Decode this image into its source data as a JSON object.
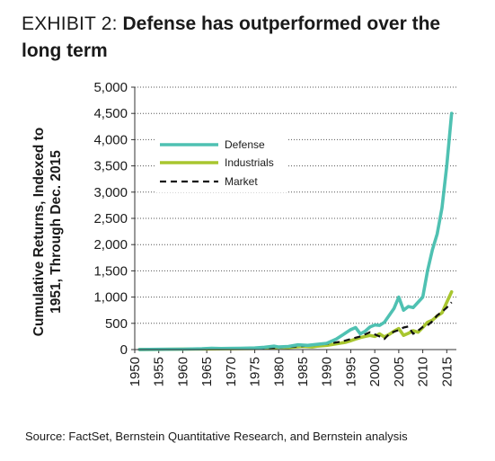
{
  "header": {
    "exhibit": "EXHIBIT 2:",
    "headline": "Defense has outperformed over the long term"
  },
  "source": "Source: FactSet, Bernstein Quantitative Research, and Bernstein analysis",
  "chart_data": {
    "type": "line",
    "title": "Defense has outperformed over the long term",
    "ylabel_line1": "Cumulative Returns, Indexed to",
    "ylabel_line2": "1951, Through Dec. 2015",
    "xlabel": "",
    "ylim": [
      0,
      5000
    ],
    "xlim": [
      1950,
      2017
    ],
    "yticks": [
      0,
      500,
      1000,
      1500,
      2000,
      2500,
      3000,
      3500,
      4000,
      4500,
      5000
    ],
    "ytick_labels": [
      "0",
      "500",
      "1,000",
      "1,500",
      "2,000",
      "2,500",
      "3,000",
      "3,500",
      "4,000",
      "4,500",
      "5,000"
    ],
    "xticks": [
      1950,
      1955,
      1960,
      1965,
      1970,
      1975,
      1980,
      1985,
      1990,
      1995,
      2000,
      2005,
      2010,
      2015
    ],
    "xtick_labels": [
      "1950",
      "1955",
      "1960",
      "1965",
      "1970",
      "1975",
      "1980",
      "1985",
      "1990",
      "1995",
      "2000",
      "2005",
      "2010",
      "2015"
    ],
    "grid": "horizontal dotted",
    "legend_position": "top-left",
    "series": [
      {
        "name": "Defense",
        "color": "#4fc1b2",
        "style": "solid",
        "x": [
          1951,
          1955,
          1960,
          1964,
          1966,
          1968,
          1972,
          1975,
          1977,
          1979,
          1980,
          1982,
          1984,
          1986,
          1988,
          1990,
          1992,
          1993,
          1994,
          1995,
          1996,
          1997,
          1998,
          1999,
          2000,
          2001,
          2002,
          2003,
          2004,
          2005,
          2006,
          2007,
          2008,
          2009,
          2010,
          2011,
          2012,
          2013,
          2014,
          2015,
          2016
        ],
        "y": [
          1,
          5,
          8,
          15,
          25,
          20,
          25,
          30,
          45,
          65,
          50,
          60,
          90,
          80,
          100,
          120,
          200,
          260,
          320,
          380,
          420,
          300,
          350,
          430,
          470,
          460,
          520,
          650,
          780,
          1000,
          750,
          820,
          800,
          900,
          1000,
          1500,
          1900,
          2200,
          2700,
          3500,
          4500
        ]
      },
      {
        "name": "Industrials",
        "color": "#a8c62f",
        "style": "solid",
        "x": [
          1951,
          1955,
          1960,
          1965,
          1970,
          1975,
          1979,
          1980,
          1982,
          1985,
          1987,
          1988,
          1990,
          1992,
          1994,
          1995,
          1996,
          1997,
          1998,
          1999,
          2000,
          2001,
          2002,
          2003,
          2004,
          2005,
          2006,
          2007,
          2008,
          2009,
          2010,
          2011,
          2012,
          2013,
          2014,
          2015,
          2016
        ],
        "y": [
          1,
          4,
          8,
          12,
          15,
          20,
          30,
          45,
          40,
          60,
          50,
          65,
          80,
          110,
          140,
          170,
          200,
          230,
          250,
          270,
          250,
          300,
          240,
          290,
          350,
          400,
          270,
          310,
          360,
          330,
          420,
          520,
          560,
          640,
          700,
          900,
          1100
        ]
      },
      {
        "name": "Market",
        "color": "#111111",
        "style": "dashed",
        "x": [
          1951,
          1955,
          1960,
          1965,
          1970,
          1975,
          1980,
          1984,
          1987,
          1990,
          1993,
          1995,
          1997,
          1999,
          2000,
          2001,
          2002,
          2003,
          2004,
          2005,
          2006,
          2007,
          2008,
          2009,
          2010,
          2011,
          2012,
          2013,
          2014,
          2015,
          2016
        ],
        "y": [
          1,
          4,
          8,
          12,
          15,
          20,
          40,
          60,
          80,
          110,
          150,
          200,
          250,
          330,
          290,
          250,
          200,
          300,
          340,
          370,
          420,
          440,
          300,
          360,
          430,
          460,
          540,
          650,
          720,
          800,
          900
        ]
      }
    ]
  }
}
